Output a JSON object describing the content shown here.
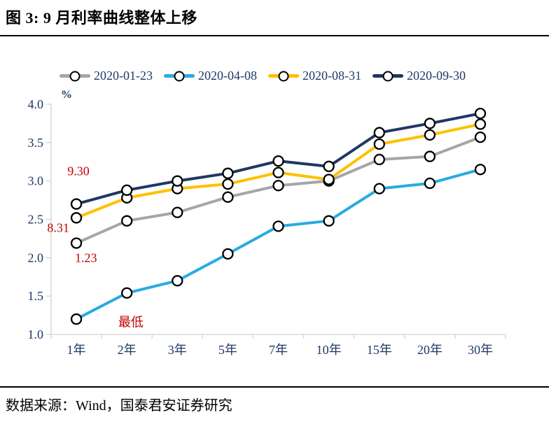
{
  "figure": {
    "title": "图 3: 9 月利率曲线整体上移",
    "source": "数据来源：Wind，国泰君安证券研究"
  },
  "chart_data": {
    "type": "line",
    "title": "9 月利率曲线整体上移",
    "unit_label": "%",
    "categories": [
      "1年",
      "2年",
      "3年",
      "5年",
      "7年",
      "10年",
      "15年",
      "20年",
      "30年"
    ],
    "series": [
      {
        "name": "2020-01-23",
        "color": "#A6A6A6",
        "values": [
          2.19,
          2.48,
          2.59,
          2.79,
          2.94,
          3.0,
          3.28,
          3.32,
          3.57
        ]
      },
      {
        "name": "2020-04-08",
        "color": "#29ABE2",
        "values": [
          1.2,
          1.54,
          1.7,
          2.05,
          2.41,
          2.48,
          2.9,
          2.97,
          3.15
        ]
      },
      {
        "name": "2020-08-31",
        "color": "#FFC000",
        "values": [
          2.52,
          2.78,
          2.9,
          2.96,
          3.11,
          3.02,
          3.48,
          3.6,
          3.74
        ]
      },
      {
        "name": "2020-09-30",
        "color": "#1F3864",
        "values": [
          2.7,
          2.88,
          3.0,
          3.1,
          3.26,
          3.19,
          3.63,
          3.75,
          3.88
        ]
      }
    ],
    "ylim": [
      1.0,
      4.0
    ],
    "ytick_step": 0.5,
    "ytick_labels": [
      "1.0",
      "1.5",
      "2.0",
      "2.5",
      "3.0",
      "3.5",
      "4.0"
    ],
    "xlabel": "",
    "ylabel": "%",
    "grid": false,
    "legend_position": "top",
    "annotations": [
      {
        "text": "9.30",
        "xi": 0.04,
        "yv": 3.13
      },
      {
        "text": "8.31",
        "xi": -0.36,
        "yv": 2.39
      },
      {
        "text": "1.23",
        "xi": 0.19,
        "yv": 2.0
      },
      {
        "text": "最低",
        "xi": 1.08,
        "yv": 1.16
      }
    ],
    "colors": {
      "axis_labels": "#1F3864",
      "annotation": "#C00000",
      "axis_line": "#D9D9D9",
      "marker_fill": "#FFFFFF",
      "marker_stroke": "#000000"
    }
  }
}
